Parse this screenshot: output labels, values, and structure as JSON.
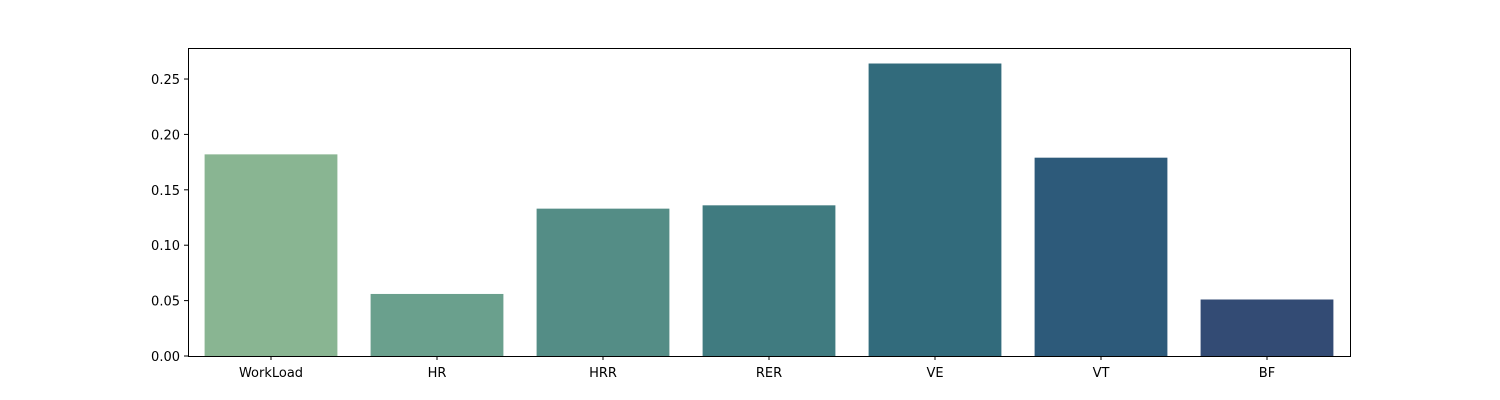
{
  "chart_data": {
    "type": "bar",
    "categories": [
      "WorkLoad",
      "HR",
      "HRR",
      "RER",
      "VE",
      "VT",
      "BF"
    ],
    "values": [
      0.182,
      0.056,
      0.133,
      0.136,
      0.264,
      0.179,
      0.051
    ],
    "colors": [
      "#89b592",
      "#6aa08d",
      "#548d86",
      "#407b80",
      "#326b7c",
      "#2d5a7a",
      "#334b74"
    ],
    "ylim": [
      0,
      0.278
    ],
    "yticks": [
      0.0,
      0.05,
      0.1,
      0.15,
      0.2,
      0.25
    ],
    "ytick_labels": [
      "0.00",
      "0.05",
      "0.10",
      "0.15",
      "0.20",
      "0.25"
    ],
    "grid": false,
    "title": "",
    "xlabel": "",
    "ylabel": ""
  }
}
